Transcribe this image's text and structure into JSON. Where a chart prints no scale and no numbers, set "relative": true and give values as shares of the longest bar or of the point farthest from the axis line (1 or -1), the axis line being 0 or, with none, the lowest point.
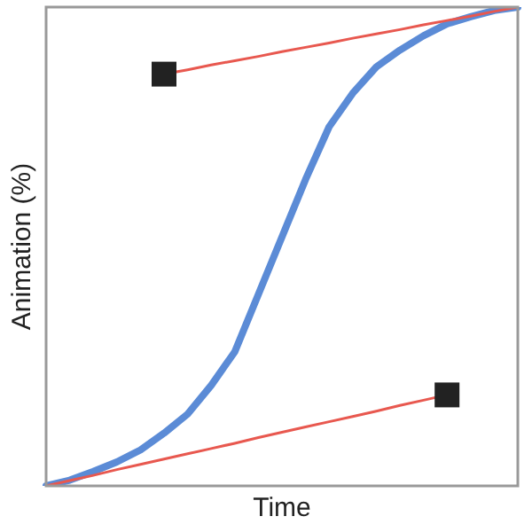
{
  "chart_data": {
    "type": "line",
    "xlabel": "Time",
    "ylabel": "Animation (%)",
    "relative": true,
    "grid": false,
    "legend": false,
    "marker": "none",
    "categories": [
      null,
      null,
      null,
      null,
      null,
      null,
      null,
      null,
      null,
      null,
      null,
      null,
      null,
      null,
      null,
      null,
      null,
      null,
      null,
      null,
      null
    ],
    "series": [
      {
        "color": "#e8584f",
        "values": [
          0,
          0.011,
          0.022,
          0.034,
          0.045,
          0.056,
          0.067,
          0.078,
          0.089,
          0.101,
          0.112,
          0.123,
          0.134,
          0.145,
          0.156,
          0.168,
          0.179,
          0.19,
          null,
          null,
          null
        ]
      },
      {
        "color": "#e8584f",
        "values": [
          null,
          null,
          null,
          null,
          null,
          0.86,
          0.869,
          0.879,
          0.888,
          0.897,
          0.907,
          0.916,
          0.925,
          0.935,
          0.944,
          0.953,
          0.963,
          0.972,
          0.981,
          0.991,
          1
        ]
      },
      {
        "color": "#5b8bd6",
        "values": [
          0,
          0.012,
          0.03,
          0.05,
          0.075,
          0.11,
          0.15,
          0.21,
          0.28,
          0.4,
          0.52,
          0.64,
          0.75,
          0.82,
          0.875,
          0.91,
          0.94,
          0.965,
          0.98,
          0.993,
          1
        ]
      }
    ]
  }
}
